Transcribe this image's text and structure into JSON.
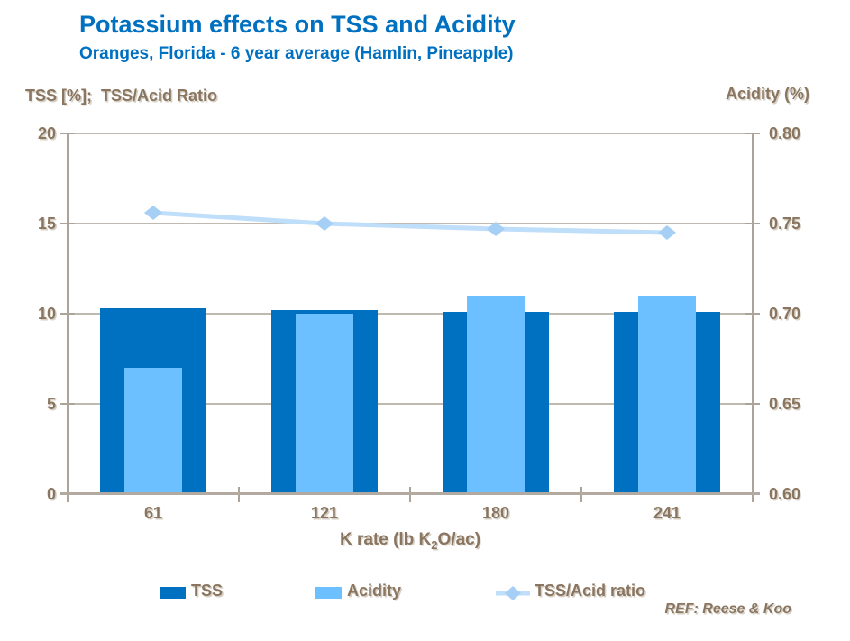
{
  "chart_data": {
    "type": "combo",
    "title": "Potassium effects on TSS and Acidity",
    "subtitle": "Oranges, Florida - 6 year average (Hamlin, Pineapple)",
    "categories": [
      "61",
      "121",
      "180",
      "241"
    ],
    "xlabel": "K rate (lb K₂O/ac)",
    "xlabel_parts": {
      "pre": "K rate (lb K",
      "sub": "2",
      "post": "O/ac)"
    },
    "left_axis": {
      "title": "TSS [%];  TSS/Acid Ratio",
      "ticks": [
        "20",
        "15",
        "10",
        "5",
        "0"
      ],
      "range": [
        0,
        20
      ],
      "grid": true
    },
    "right_axis": {
      "title": "Acidity (%)",
      "ticks": [
        "0.80",
        "0.75",
        "0.70",
        "0.65",
        "0.60"
      ],
      "range": [
        0.6,
        0.8
      ]
    },
    "series": [
      {
        "name": "TSS",
        "type": "bar",
        "axis": "left",
        "color": "#0070C0",
        "values": [
          10.3,
          10.2,
          10.1,
          10.1
        ]
      },
      {
        "name": "Acidity",
        "type": "bar",
        "axis": "right",
        "color": "#6DC0FF",
        "values": [
          0.67,
          0.7,
          0.71,
          0.71
        ]
      },
      {
        "name": "TSS/Acid ratio",
        "type": "line",
        "axis": "left",
        "color": "#BFDEFA",
        "marker": "diamond",
        "marker_color": "#A6CFF5",
        "values": [
          15.6,
          15.0,
          14.7,
          14.5
        ]
      }
    ],
    "legend_position": "bottom",
    "annotations": [
      "REF: Reese & Koo"
    ],
    "theme": {
      "title_color": "#0070C0",
      "text_color": "#8A7660",
      "gridline_color": "#C0B9AF",
      "axis_color": "#ACA49A",
      "x_axis_color": "#B2AAA0"
    }
  }
}
